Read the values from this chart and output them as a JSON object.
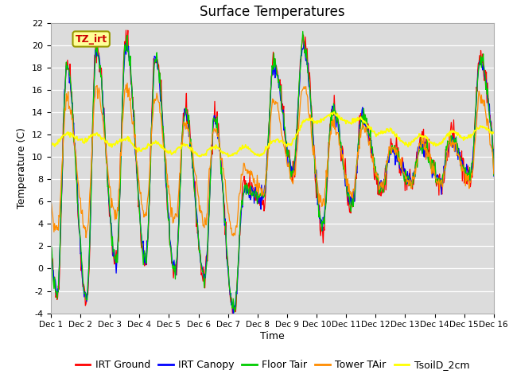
{
  "title": "Surface Temperatures",
  "xlabel": "Time",
  "ylabel": "Temperature (C)",
  "ylim": [
    -4,
    22
  ],
  "xlim": [
    0,
    15
  ],
  "xtick_labels": [
    "Dec 1",
    "Dec 2",
    "Dec 3",
    "Dec 4",
    "Dec 5",
    "Dec 6",
    "Dec 7",
    "Dec 8",
    "Dec 9",
    "Dec 10",
    "Dec 11",
    "Dec 12",
    "Dec 13",
    "Dec 14",
    "Dec 15",
    "Dec 16"
  ],
  "ytick_values": [
    -4,
    -2,
    0,
    2,
    4,
    6,
    8,
    10,
    12,
    14,
    16,
    18,
    20,
    22
  ],
  "series_colors": {
    "IRT Ground": "#FF0000",
    "IRT Canopy": "#0000FF",
    "Floor Tair": "#00CC00",
    "Tower TAir": "#FF8C00",
    "TsoilD_2cm": "#FFFF00"
  },
  "legend_entries": [
    "IRT Ground",
    "IRT Canopy",
    "Floor Tair",
    "Tower TAir",
    "TsoilD_2cm"
  ],
  "annotation_text": "TZ_irt",
  "annotation_color": "#CC0000",
  "annotation_bg": "#FFFF99",
  "annotation_border": "#999900",
  "background_color": "#DCDCDC",
  "title_fontsize": 12,
  "axis_fontsize": 9,
  "legend_fontsize": 9,
  "day_peaks": [
    18.5,
    20.0,
    20.5,
    19.0,
    14.5,
    14.0,
    7.5,
    18.5,
    20.5,
    14.5,
    14.0,
    11.0,
    11.5,
    12.0,
    19.0
  ],
  "day_nights": [
    -2.5,
    -3.0,
    0.5,
    0.5,
    -0.5,
    -1.0,
    -4.0,
    6.0,
    8.5,
    3.5,
    5.5,
    7.0,
    7.5,
    7.5,
    8.0
  ],
  "tsoil_vals": [
    11.5,
    11.8,
    11.5,
    11.0,
    10.8,
    10.5,
    10.5,
    10.5,
    11.5,
    13.5,
    13.5,
    12.5,
    11.5,
    11.5,
    12.0,
    12.5
  ]
}
